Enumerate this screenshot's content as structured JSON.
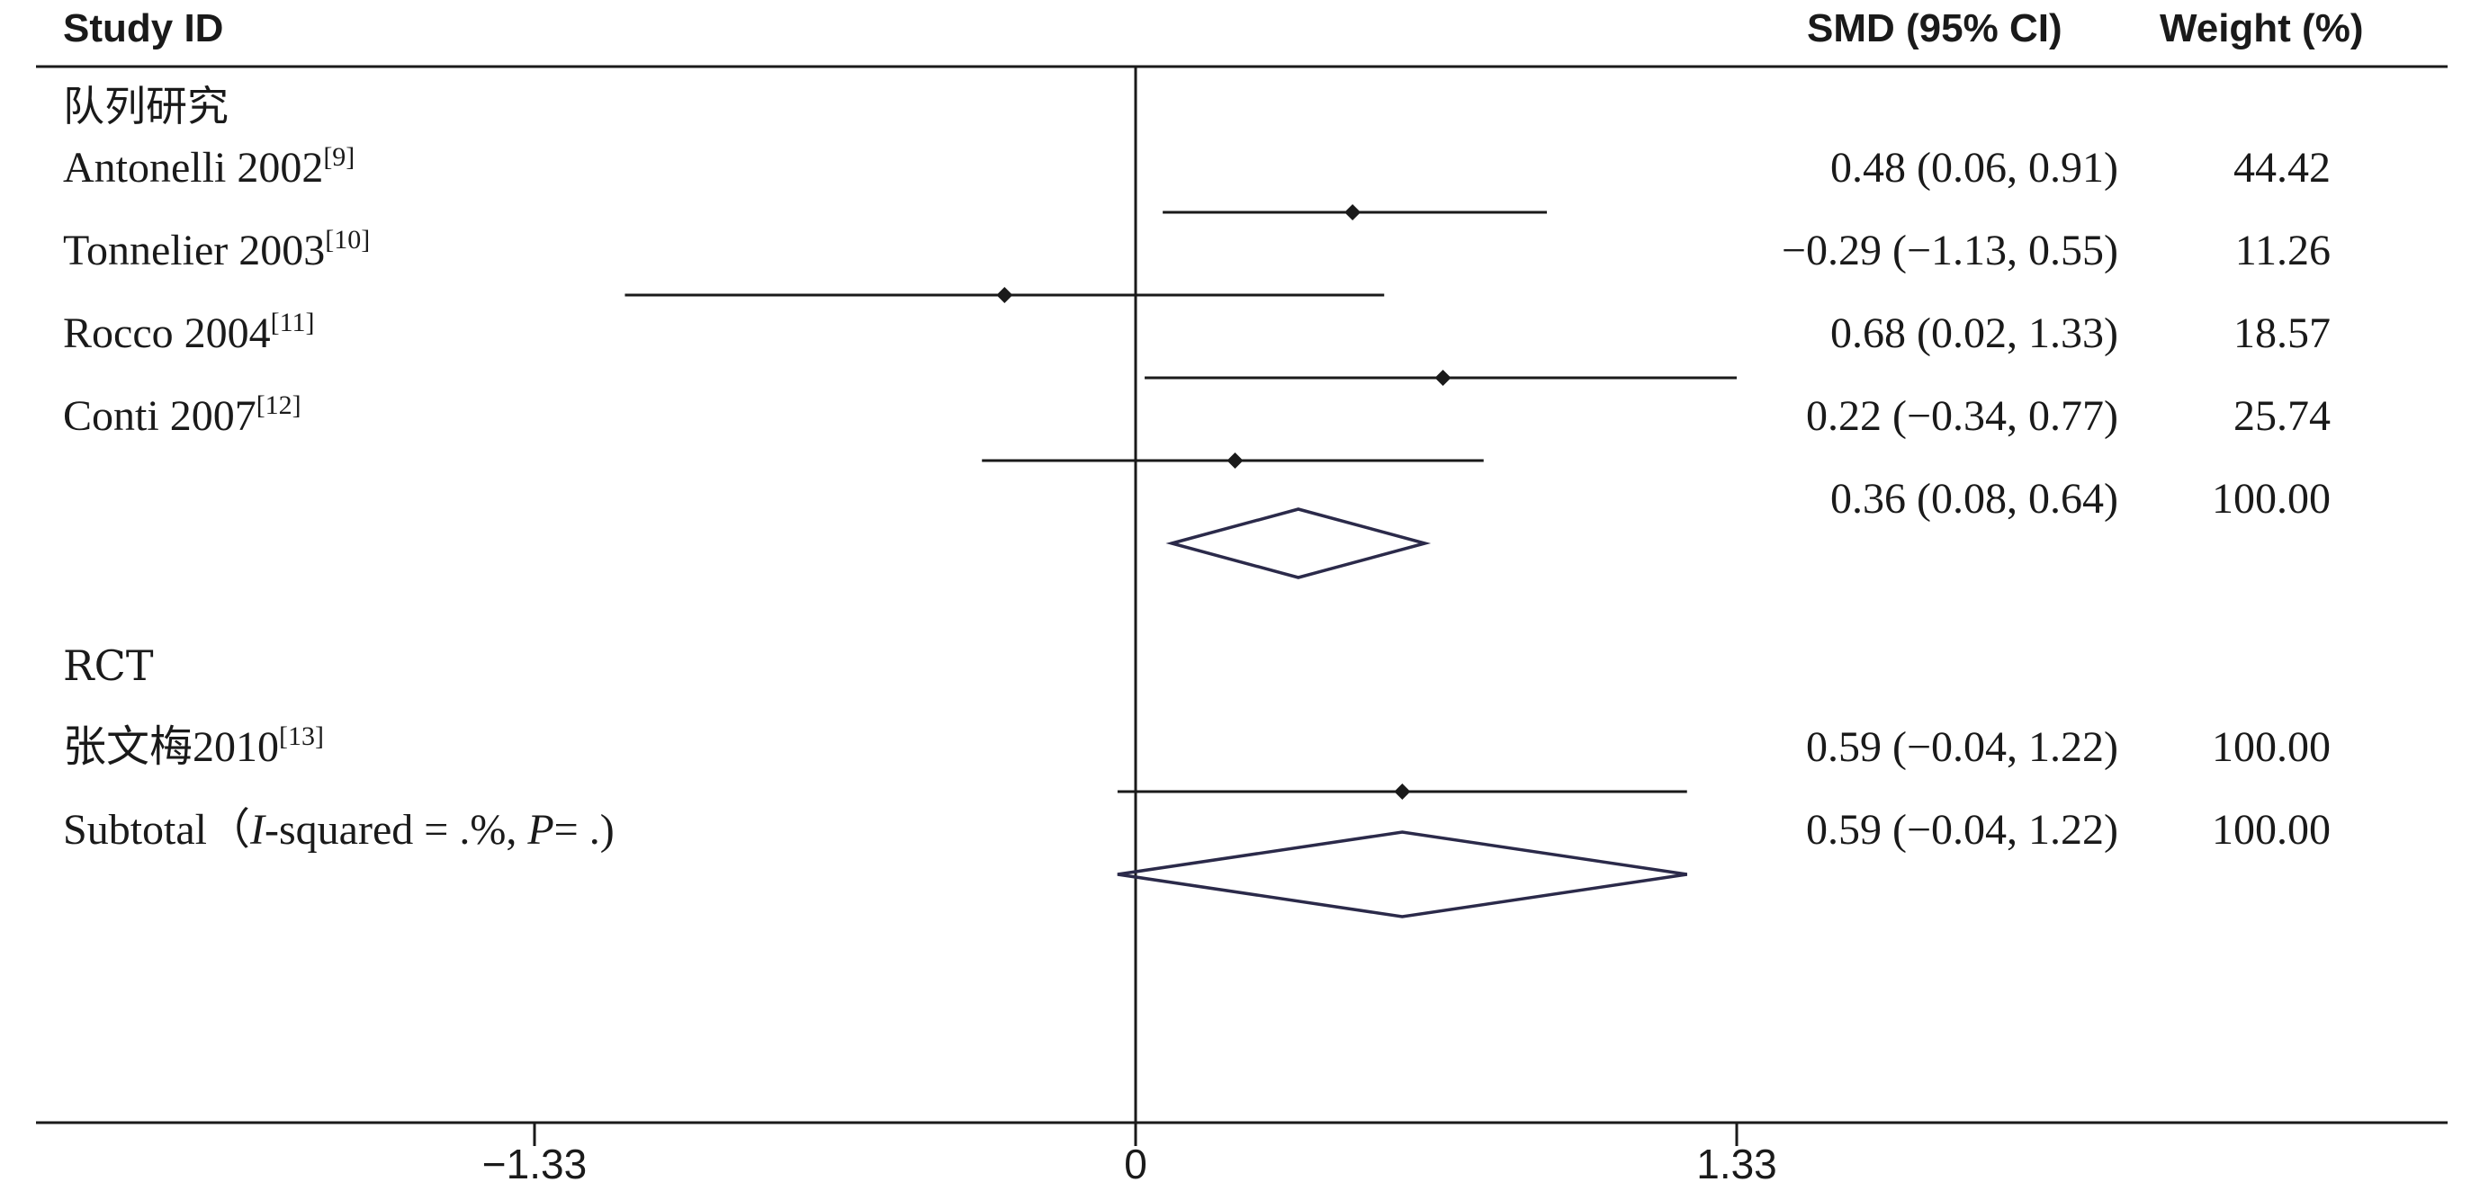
{
  "chart_data": {
    "type": "forest",
    "columns": {
      "study": "Study ID",
      "effect": "SMD (95% CI)",
      "weight": "Weight (%)"
    },
    "groups": [
      {
        "name": "队列研究",
        "studies": [
          {
            "name": "Antonelli 2002",
            "ref": "[9]",
            "smd": 0.48,
            "lo": 0.06,
            "hi": 0.91,
            "ci_text": "0.48 (0.06, 0.91)",
            "weight": "44.42"
          },
          {
            "name": "Tonnelier 2003",
            "ref": "[10]",
            "smd": -0.29,
            "lo": -1.13,
            "hi": 0.55,
            "ci_text": "−0.29 (−1.13, 0.55)",
            "weight": "11.26"
          },
          {
            "name": "Rocco 2004",
            "ref": "[11]",
            "smd": 0.68,
            "lo": 0.02,
            "hi": 1.33,
            "ci_text": "0.68 (0.02, 1.33)",
            "weight": "18.57"
          },
          {
            "name": "Conti 2007",
            "ref": "[12]",
            "smd": 0.22,
            "lo": -0.34,
            "hi": 0.77,
            "ci_text": "0.22 (−0.34, 0.77)",
            "weight": "25.74"
          }
        ],
        "subtotal": {
          "label": "",
          "smd": 0.36,
          "lo": 0.08,
          "hi": 0.64,
          "ci_text": "0.36 (0.08, 0.64)",
          "weight": "100.00"
        }
      },
      {
        "name": "RCT",
        "studies": [
          {
            "name": "张文梅2010",
            "ref": "[13]",
            "smd": 0.59,
            "lo": -0.04,
            "hi": 1.22,
            "ci_text": "0.59 (−0.04, 1.22)",
            "weight": "100.00"
          }
        ],
        "subtotal": {
          "label": "Subtotal（I-squared = .%, P= .)",
          "smd": 0.59,
          "lo": -0.04,
          "hi": 1.22,
          "ci_text": "0.59 (−0.04, 1.22)",
          "weight": "100.00"
        }
      }
    ],
    "x_ticks": [
      {
        "value": -1.33,
        "label": "−1.33"
      },
      {
        "value": 0,
        "label": "0"
      },
      {
        "value": 1.33,
        "label": "1.33"
      }
    ],
    "xlim": [
      -2.42,
      2.93
    ],
    "null_line": 0,
    "colors": {
      "text": "#1a1a1a",
      "line": "#1a1a1a",
      "diamond": "#2b2a4a"
    }
  }
}
